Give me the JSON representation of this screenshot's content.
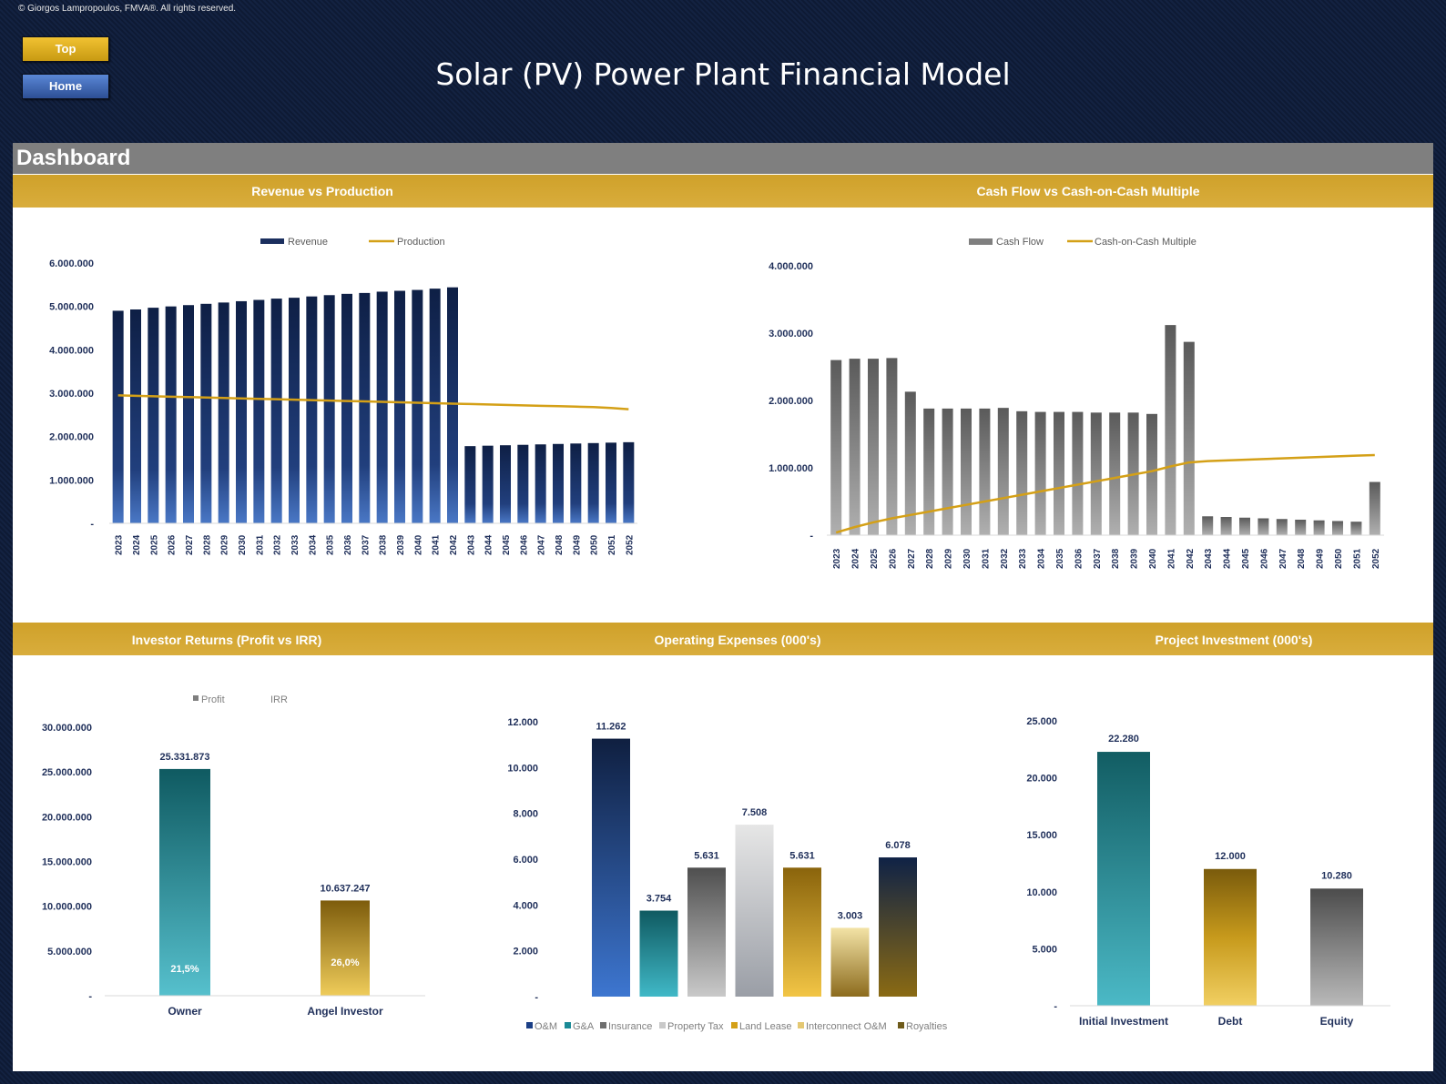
{
  "copyright": "© Giorgos Lampropoulos, FMVA®. All rights reserved.",
  "nav": {
    "top_label": "Top",
    "home_label": "Home"
  },
  "header": {
    "title": "Solar (PV) Power Plant Financial Model"
  },
  "dashboard": {
    "title": "Dashboard"
  },
  "sections": {
    "revenue_vs_production": "Revenue vs Production",
    "cashflow_vs_coc": "Cash Flow vs Cash-on-Cash Multiple",
    "investor_returns": "Investor Returns (Profit vs IRR)",
    "operating_expenses": "Operating Expenses (000's)",
    "project_investment": "Project Investment (000's)"
  },
  "colors": {
    "navy": "#0f1a33",
    "gold": "#d4a533",
    "gray_header": "#7f7f7f"
  },
  "chart_data": [
    {
      "id": "revenue_vs_production",
      "type": "bar",
      "x": [
        "2023",
        "2024",
        "2025",
        "2026",
        "2027",
        "2028",
        "2029",
        "2030",
        "2031",
        "2032",
        "2033",
        "2034",
        "2035",
        "2036",
        "2037",
        "2038",
        "2039",
        "2040",
        "2041",
        "2042",
        "2043",
        "2044",
        "2045",
        "2046",
        "2047",
        "2048",
        "2049",
        "2050",
        "2051",
        "2052"
      ],
      "series": [
        {
          "name": "Revenue",
          "type": "bar",
          "values": [
            4900000,
            4930000,
            4970000,
            5000000,
            5030000,
            5060000,
            5090000,
            5120000,
            5150000,
            5180000,
            5200000,
            5230000,
            5260000,
            5290000,
            5310000,
            5340000,
            5360000,
            5380000,
            5410000,
            5440000,
            1780000,
            1790000,
            1800000,
            1810000,
            1820000,
            1830000,
            1840000,
            1850000,
            1860000,
            1870000
          ]
        },
        {
          "name": "Production",
          "type": "line",
          "values": [
            2950000,
            2940000,
            2930000,
            2920000,
            2910000,
            2900000,
            2890000,
            2880000,
            2870000,
            2860000,
            2850000,
            2840000,
            2830000,
            2820000,
            2810000,
            2800000,
            2790000,
            2780000,
            2770000,
            2760000,
            2750000,
            2740000,
            2730000,
            2720000,
            2710000,
            2700000,
            2690000,
            2680000,
            2660000,
            2630000
          ]
        }
      ],
      "ylim": [
        0,
        6000000
      ],
      "yticks": [
        "-",
        "1.000.000",
        "2.000.000",
        "3.000.000",
        "4.000.000",
        "5.000.000",
        "6.000.000"
      ],
      "legend": "top"
    },
    {
      "id": "cashflow_vs_coc",
      "type": "bar",
      "x": [
        "2023",
        "2024",
        "2025",
        "2026",
        "2027",
        "2028",
        "2029",
        "2030",
        "2031",
        "2032",
        "2033",
        "2034",
        "2035",
        "2036",
        "2037",
        "2038",
        "2039",
        "2040",
        "2041",
        "2042",
        "2043",
        "2044",
        "2045",
        "2046",
        "2047",
        "2048",
        "2049",
        "2050",
        "2051",
        "2052"
      ],
      "series": [
        {
          "name": "Cash Flow",
          "type": "bar",
          "values": [
            2600000,
            2620000,
            2620000,
            2630000,
            2130000,
            1880000,
            1880000,
            1880000,
            1880000,
            1890000,
            1840000,
            1830000,
            1830000,
            1830000,
            1820000,
            1820000,
            1820000,
            1800000,
            3120000,
            2870000,
            280000,
            270000,
            260000,
            250000,
            240000,
            230000,
            220000,
            210000,
            200000,
            790000
          ]
        },
        {
          "name": "Cash-on-Cash Multiple",
          "type": "line",
          "values": [
            40000,
            120000,
            190000,
            250000,
            300000,
            350000,
            400000,
            450000,
            500000,
            550000,
            600000,
            650000,
            700000,
            750000,
            800000,
            850000,
            900000,
            950000,
            1020000,
            1080000,
            1100000,
            1110000,
            1120000,
            1130000,
            1140000,
            1150000,
            1160000,
            1170000,
            1180000,
            1190000
          ]
        }
      ],
      "ylim": [
        0,
        4000000
      ],
      "yticks": [
        "-",
        "1.000.000",
        "2.000.000",
        "3.000.000",
        "4.000.000"
      ],
      "legend": "top"
    },
    {
      "id": "investor_returns",
      "type": "bar",
      "categories": [
        "Owner",
        "Angel Investor"
      ],
      "series": [
        {
          "name": "Profit",
          "values": [
            25331873,
            10637247
          ],
          "labels": [
            "25.331.873",
            "10.637.247"
          ]
        },
        {
          "name": "IRR",
          "values": [
            0.215,
            0.26
          ],
          "labels": [
            "21,5%",
            "26,0%"
          ]
        }
      ],
      "ylim": [
        0,
        30000000
      ],
      "yticks": [
        "-",
        "5.000.000",
        "10.000.000",
        "15.000.000",
        "20.000.000",
        "25.000.000",
        "30.000.000"
      ],
      "legend": "top"
    },
    {
      "id": "operating_expenses",
      "type": "bar",
      "categories": [
        "O&M",
        "G&A",
        "Insurance",
        "Property Tax",
        "Land Lease",
        "Interconnect O&M",
        "Royalties"
      ],
      "values": [
        11262,
        3754,
        5631,
        7508,
        5631,
        3003,
        6078
      ],
      "labels": [
        "11.262",
        "3.754",
        "5.631",
        "7.508",
        "5.631",
        "3.003",
        "6.078"
      ],
      "ylim": [
        0,
        12000
      ],
      "yticks": [
        "-",
        "2.000",
        "4.000",
        "6.000",
        "8.000",
        "10.000",
        "12.000"
      ],
      "legend": "bottom"
    },
    {
      "id": "project_investment",
      "type": "bar",
      "categories": [
        "Initial Investment",
        "Debt",
        "Equity"
      ],
      "values": [
        22280,
        12000,
        10280
      ],
      "labels": [
        "22.280",
        "12.000",
        "10.280"
      ],
      "ylim": [
        0,
        25000
      ],
      "yticks": [
        "-",
        "5.000",
        "10.000",
        "15.000",
        "20.000",
        "25.000"
      ]
    }
  ]
}
